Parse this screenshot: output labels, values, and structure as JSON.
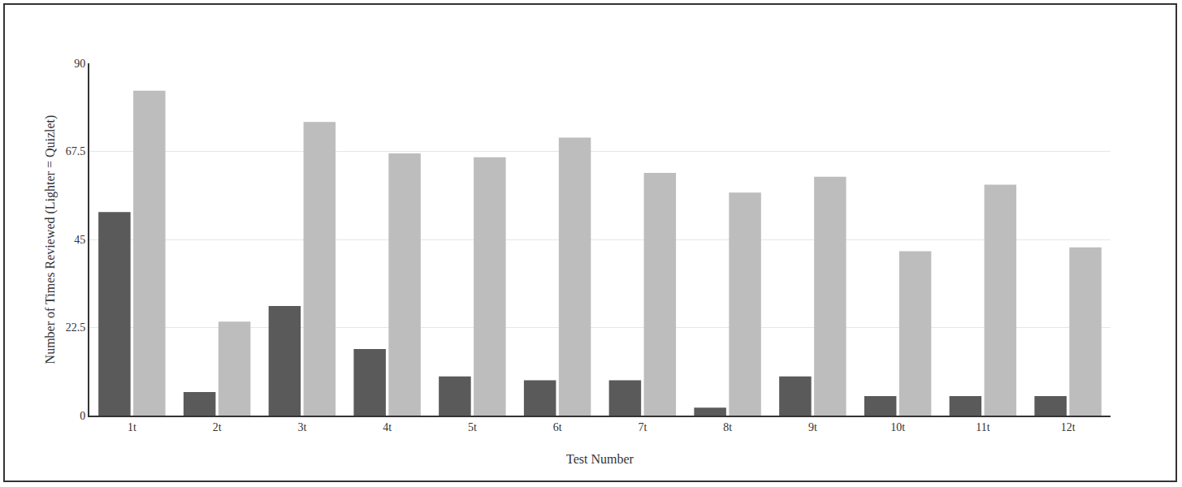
{
  "chart_data": {
    "type": "bar",
    "x_label": "Test Number",
    "y_label": "Number of Times Reviewed (Lighter = Quizlet)",
    "categories": [
      "1t",
      "2t",
      "3t",
      "4t",
      "5t",
      "6t",
      "7t",
      "8t",
      "9t",
      "10t",
      "11t",
      "12t"
    ],
    "series": [
      {
        "color": "#5a5a5a",
        "values": [
          52,
          6,
          28,
          17,
          10,
          9,
          9,
          2,
          10,
          5,
          5,
          5
        ]
      },
      {
        "color": "#bdbdbd",
        "values": [
          83,
          24,
          75,
          67,
          66,
          71,
          62,
          57,
          61,
          42,
          59,
          43
        ]
      }
    ],
    "ylim": [
      0,
      90
    ],
    "yticks": [
      0,
      22.5,
      45,
      67.5,
      90
    ],
    "grid": true
  }
}
